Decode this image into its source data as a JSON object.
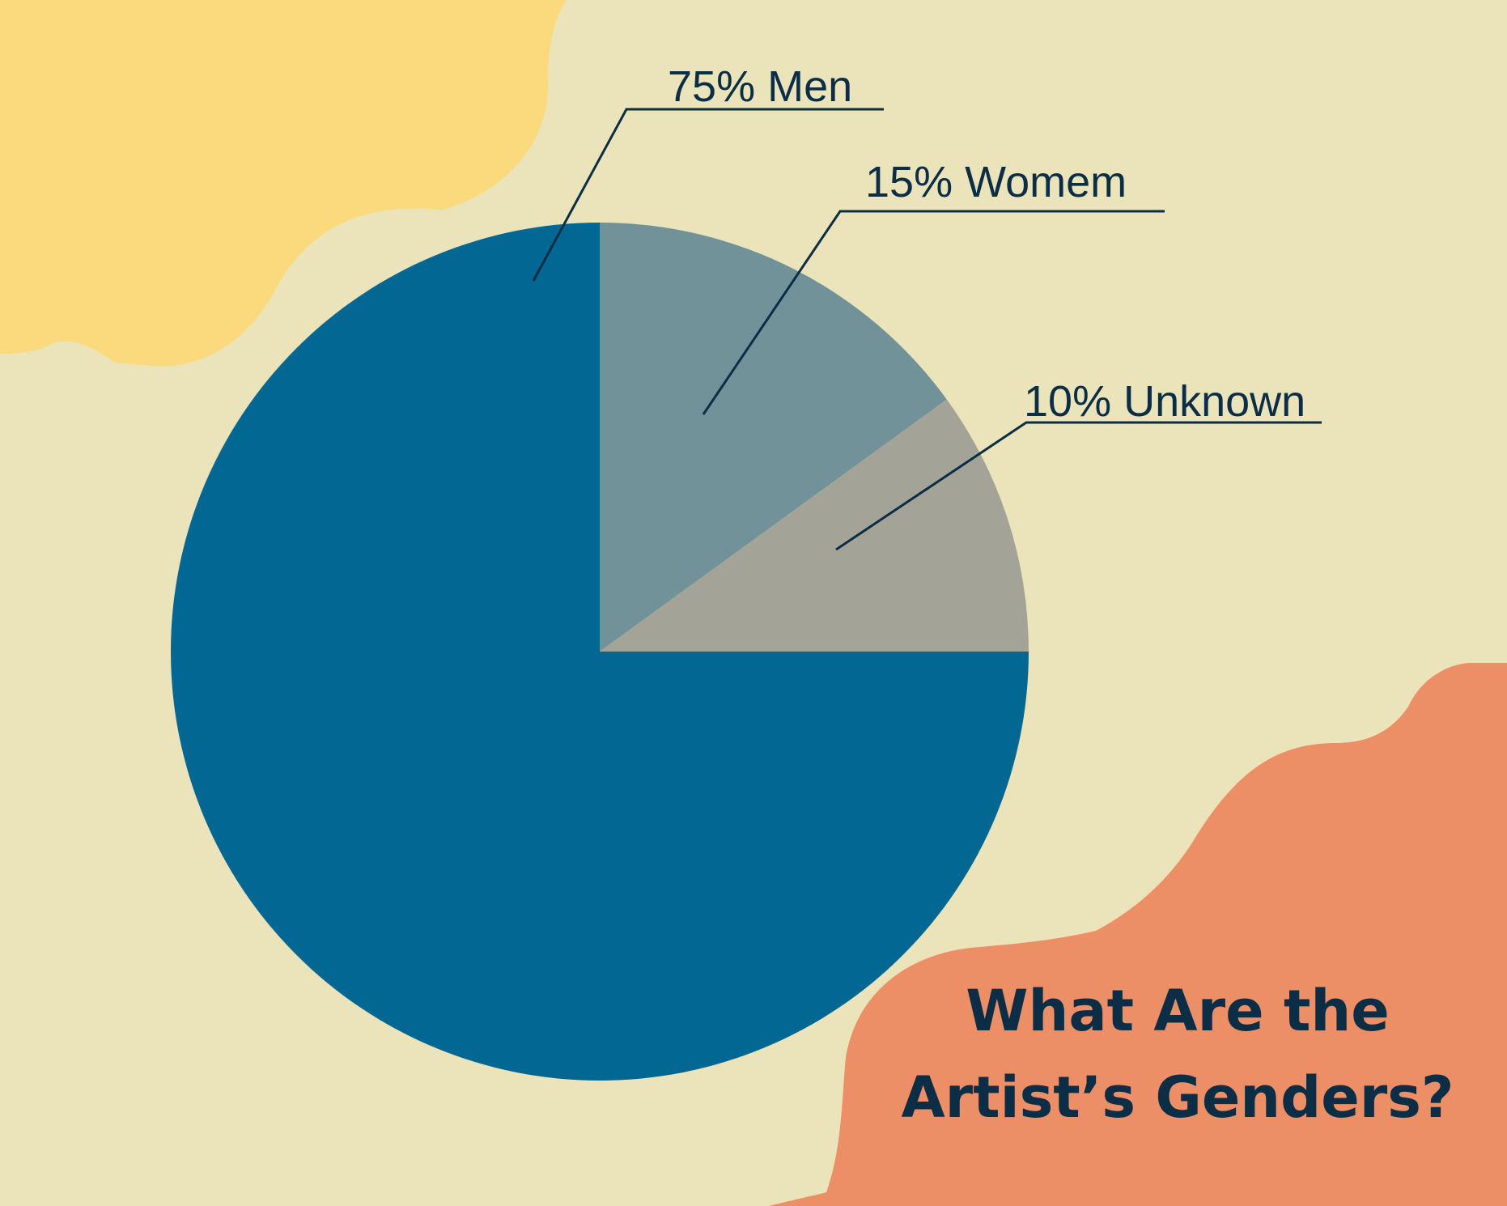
{
  "chart_data": {
    "type": "pie",
    "title": [
      "What Are the",
      "Artist’s Genders?"
    ],
    "slices": [
      {
        "label": "75% Men",
        "value": 75,
        "color": "#026893"
      },
      {
        "label": "15% Womem",
        "value": 15,
        "color": "#72929a"
      },
      {
        "label": "10% Unknown",
        "value": 10,
        "color": "#a3a398"
      }
    ],
    "start_angle": "12 o'clock, clockwise order: Womem, Unknown, Men",
    "label_color": "#0b2d45",
    "background_colors": {
      "base": "#ebe4bb",
      "top_left_blob": "#fbd97d",
      "bottom_right_blob": "#ec8f66"
    }
  }
}
